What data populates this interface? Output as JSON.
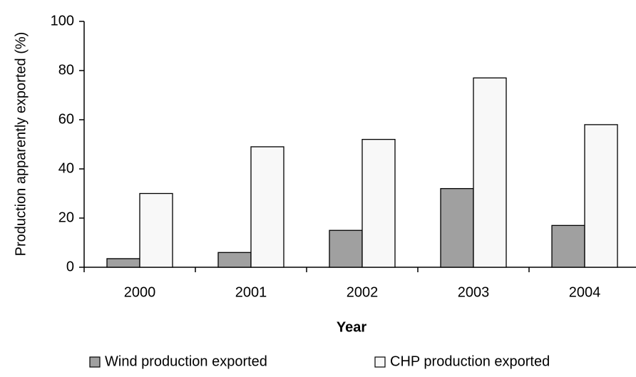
{
  "chart_data": {
    "type": "bar",
    "x_label": "Year",
    "y_label": "Production apparently exported (%)",
    "categories": [
      "2000",
      "2001",
      "2002",
      "2003",
      "2004"
    ],
    "series": [
      {
        "name": "Wind production exported",
        "color": "#a0a0a0",
        "values": [
          3.5,
          6,
          15,
          32,
          17
        ]
      },
      {
        "name": "CHP production exported",
        "color": "#f8f8f8",
        "values": [
          30,
          49,
          52,
          77,
          58
        ]
      }
    ],
    "ylim": [
      0,
      100
    ],
    "yticks": [
      0,
      20,
      40,
      60,
      80,
      100
    ],
    "grid": false,
    "legend": "bottom"
  }
}
